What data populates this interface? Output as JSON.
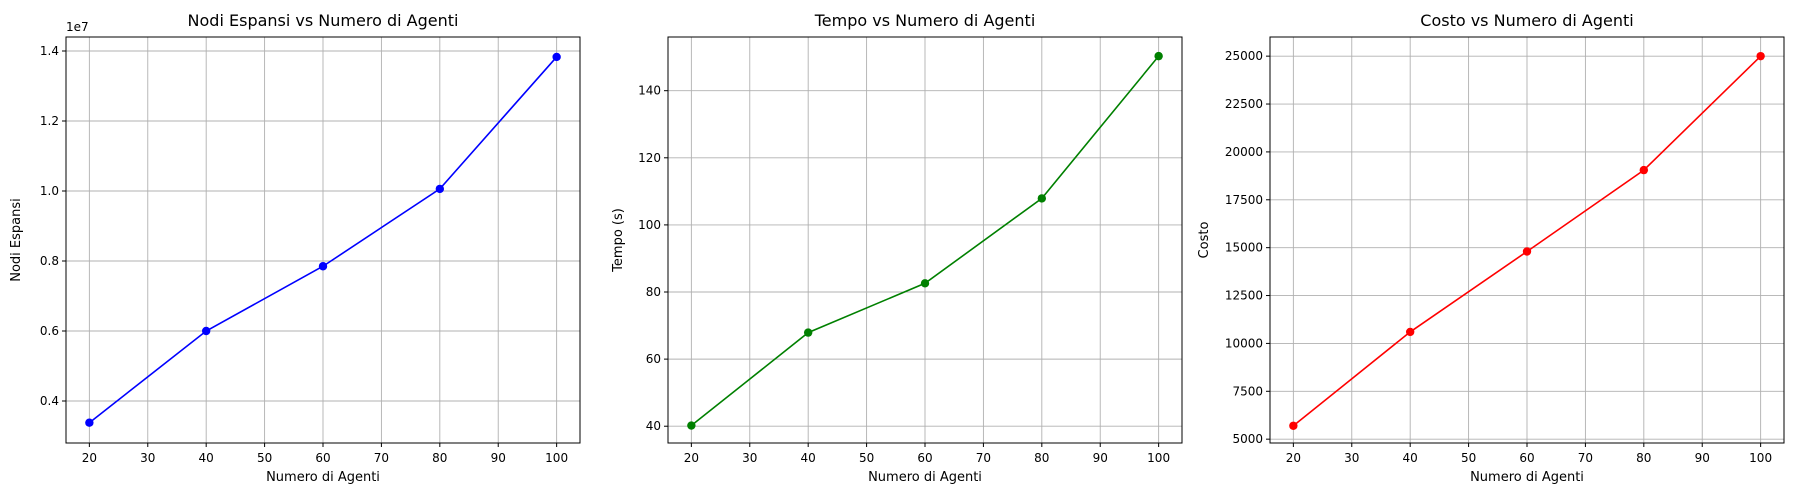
{
  "chart_data": [
    {
      "type": "line",
      "title": "Nodi Espansi vs Numero di Agenti",
      "xlabel": "Numero di Agenti",
      "ylabel": "Nodi Espansi",
      "y_offset_label": "1e7",
      "x": [
        20,
        40,
        60,
        80,
        100
      ],
      "series": [
        {
          "values": [
            3.38,
            6.0,
            7.85,
            10.06,
            13.83
          ],
          "color": "#0000ff"
        }
      ],
      "xlim": [
        16,
        104
      ],
      "ylim": [
        2.8,
        14.4
      ],
      "xticks": [
        20,
        30,
        40,
        50,
        60,
        70,
        80,
        90,
        100
      ],
      "yticks": [
        4,
        6,
        8,
        10,
        12,
        14
      ],
      "ytick_labels": [
        "0.4",
        "0.6",
        "0.8",
        "1.0",
        "1.2",
        "1.4"
      ],
      "grid": true,
      "marker": "circle"
    },
    {
      "type": "line",
      "title": "Tempo vs Numero di Agenti",
      "xlabel": "Numero di Agenti",
      "ylabel": "Tempo (s)",
      "x": [
        20,
        40,
        60,
        80,
        100
      ],
      "series": [
        {
          "values": [
            40.2,
            67.9,
            82.6,
            107.9,
            150.3
          ],
          "color": "#008000"
        }
      ],
      "xlim": [
        16,
        104
      ],
      "ylim": [
        35,
        156
      ],
      "xticks": [
        20,
        30,
        40,
        50,
        60,
        70,
        80,
        90,
        100
      ],
      "yticks": [
        40,
        60,
        80,
        100,
        120,
        140
      ],
      "ytick_labels": [
        "40",
        "60",
        "80",
        "100",
        "120",
        "140"
      ],
      "grid": true,
      "marker": "circle"
    },
    {
      "type": "line",
      "title": "Costo vs Numero di Agenti",
      "xlabel": "Numero di Agenti",
      "ylabel": "Costo",
      "x": [
        20,
        40,
        60,
        80,
        100
      ],
      "series": [
        {
          "values": [
            5700,
            10600,
            14800,
            19050,
            25000
          ],
          "color": "#ff0000"
        }
      ],
      "xlim": [
        16,
        104
      ],
      "ylim": [
        4800,
        26000
      ],
      "xticks": [
        20,
        30,
        40,
        50,
        60,
        70,
        80,
        90,
        100
      ],
      "yticks": [
        5000,
        7500,
        10000,
        12500,
        15000,
        17500,
        20000,
        22500,
        25000
      ],
      "ytick_labels": [
        "5000",
        "7500",
        "10000",
        "12500",
        "15000",
        "17500",
        "20000",
        "22500",
        "25000"
      ],
      "grid": true,
      "marker": "circle"
    }
  ]
}
